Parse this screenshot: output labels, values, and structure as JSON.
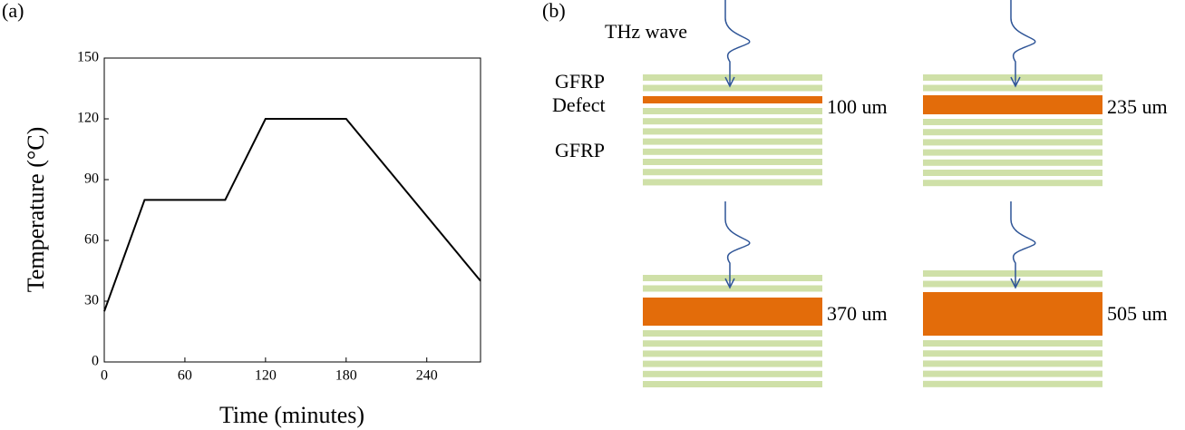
{
  "panel_labels": [
    "(a)",
    "(b)"
  ],
  "chart_data": {
    "type": "line",
    "xlabel": "Time (minutes)",
    "ylabel": "Temperature (°C)",
    "x": [
      0,
      30,
      90,
      120,
      180,
      280
    ],
    "values": [
      25,
      80,
      80,
      120,
      120,
      40
    ],
    "color": "#000000",
    "xlim": [
      0,
      280
    ],
    "xticks": [
      0,
      60,
      120,
      180,
      240
    ],
    "ylim": [
      0,
      150
    ],
    "yticks": [
      0,
      30,
      60,
      90,
      120,
      150
    ]
  },
  "diagram": {
    "wave_label": "THz wave",
    "layer_top": "GFRP",
    "defect_label": "Defect",
    "layer_bottom": "GFRP",
    "thicknesses": [
      "100 um",
      "235 um",
      "370 um",
      "505 um"
    ]
  }
}
